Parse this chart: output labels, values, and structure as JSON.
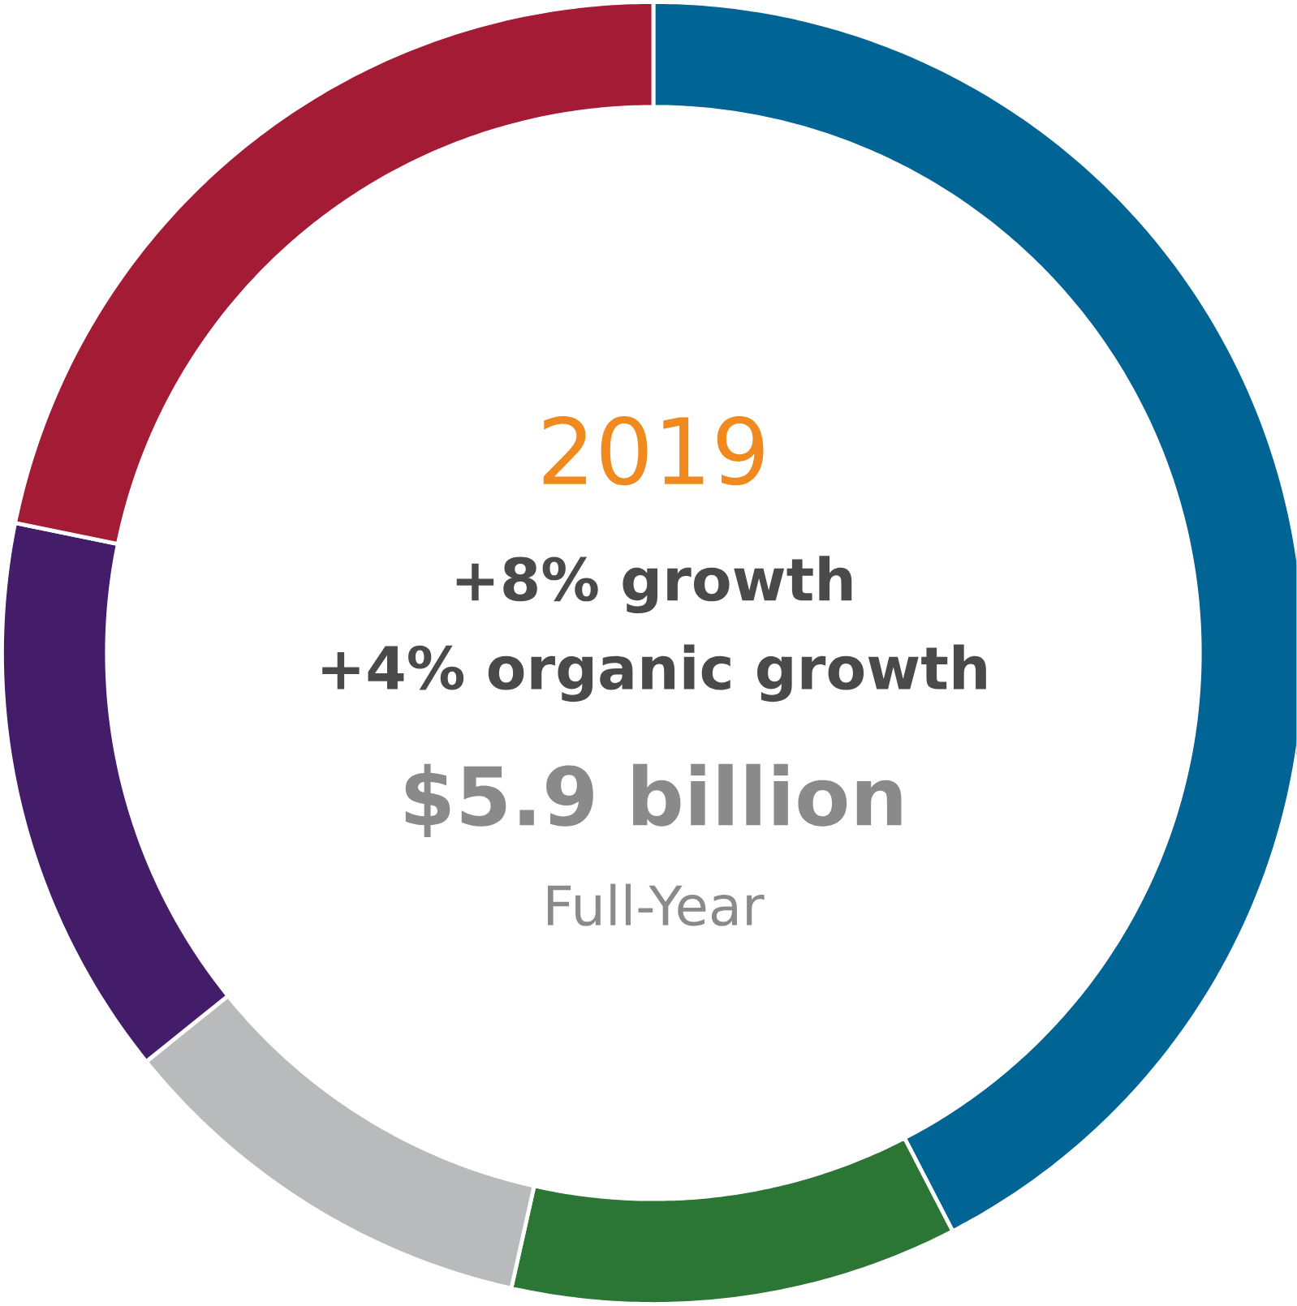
{
  "chart_data": {
    "type": "donut",
    "title": "2019",
    "subtitle": "+8% growth",
    "annotations": [
      "+4% organic growth",
      "$5.9 billion",
      "Full-Year"
    ],
    "categories": [
      null,
      null,
      null,
      null,
      null
    ],
    "values": [
      42.4,
      11.1,
      10.7,
      14.0,
      21.8
    ],
    "colors": [
      "#006494",
      "#2b7535",
      "#b9babc",
      "#431d6a",
      "#a31b35"
    ]
  }
}
